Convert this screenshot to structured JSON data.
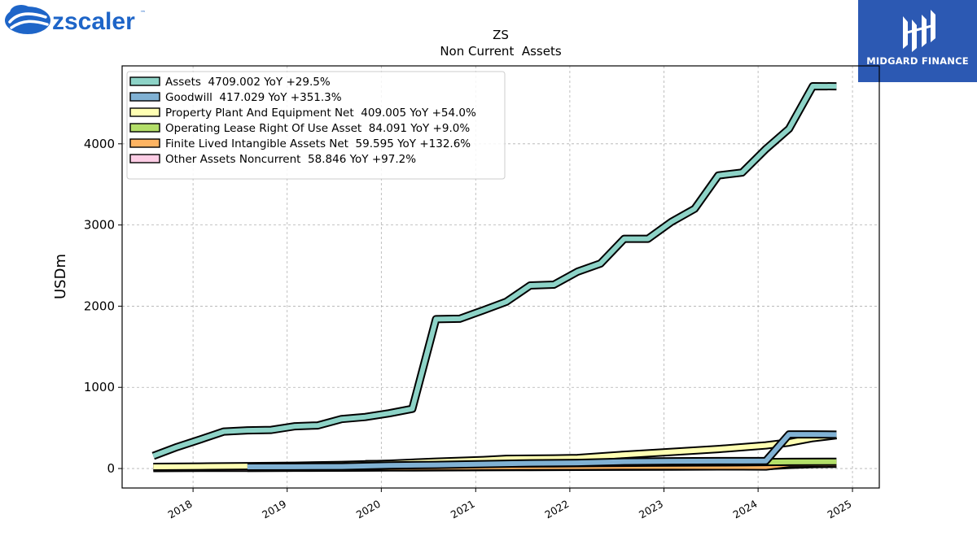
{
  "logos": {
    "left": {
      "wordmark": "zscaler",
      "mark": "™",
      "icon": "zscaler-cloud-icon",
      "color": "#1e65c8"
    },
    "right": {
      "wordmark": "MIDGARD FINANCE",
      "icon": "midgard-m-icon",
      "background": "#2c59b3"
    }
  },
  "chart_data": {
    "type": "line",
    "title": "ZS",
    "subtitle": "Non Current  Assets",
    "ylabel": "USDm",
    "xlabel": "",
    "xlim": [
      "2017-04-01",
      "2025-04-15"
    ],
    "ylim": [
      -240,
      4960
    ],
    "yticks": [
      0,
      1000,
      2000,
      3000,
      4000
    ],
    "xticks": [
      "2018",
      "2019",
      "2020",
      "2021",
      "2022",
      "2023",
      "2024",
      "2025"
    ],
    "grid": true,
    "legend_position": "top-left",
    "series": [
      {
        "name": "Assets",
        "legend": "Assets  4709.002 YoY +29.5%",
        "color": "#8dd3c7",
        "points": [
          [
            "2017-07-31",
            155
          ],
          [
            "2017-10-31",
            265
          ],
          [
            "2018-01-31",
            360
          ],
          [
            "2018-04-30",
            455
          ],
          [
            "2018-07-31",
            470
          ],
          [
            "2018-10-31",
            475
          ],
          [
            "2019-01-31",
            520
          ],
          [
            "2019-04-30",
            530
          ],
          [
            "2019-07-31",
            610
          ],
          [
            "2019-10-31",
            635
          ],
          [
            "2020-01-31",
            680
          ],
          [
            "2020-04-30",
            735
          ],
          [
            "2020-07-31",
            1840
          ],
          [
            "2020-10-31",
            1845
          ],
          [
            "2021-01-31",
            1950
          ],
          [
            "2021-04-30",
            2055
          ],
          [
            "2021-07-31",
            2255
          ],
          [
            "2021-10-31",
            2265
          ],
          [
            "2022-01-31",
            2425
          ],
          [
            "2022-04-30",
            2525
          ],
          [
            "2022-07-31",
            2830
          ],
          [
            "2022-10-31",
            2830
          ],
          [
            "2023-01-31",
            3040
          ],
          [
            "2023-04-30",
            3200
          ],
          [
            "2023-07-31",
            3610
          ],
          [
            "2023-10-31",
            3645
          ],
          [
            "2024-01-31",
            3935
          ],
          [
            "2024-04-30",
            4185
          ],
          [
            "2024-07-31",
            4710
          ],
          [
            "2024-10-31",
            4709.002
          ]
        ]
      },
      {
        "name": "Goodwill",
        "legend": "Goodwill  417.029 YoY +351.3%",
        "color": "#80b1d3",
        "points": [
          [
            "2018-07-31",
            20
          ],
          [
            "2019-01-31",
            22
          ],
          [
            "2019-07-31",
            25
          ],
          [
            "2020-01-31",
            38
          ],
          [
            "2020-07-31",
            45
          ],
          [
            "2021-01-31",
            55
          ],
          [
            "2021-07-31",
            65
          ],
          [
            "2022-01-31",
            70
          ],
          [
            "2022-07-31",
            85
          ],
          [
            "2023-01-31",
            90
          ],
          [
            "2023-07-31",
            92
          ],
          [
            "2023-10-31",
            92
          ],
          [
            "2024-01-31",
            93
          ],
          [
            "2024-04-30",
            420
          ],
          [
            "2024-07-31",
            420
          ],
          [
            "2024-10-31",
            417.029
          ]
        ]
      },
      {
        "name": "Property Plant And Equipment Net",
        "legend": "Property Plant And Equipment Net  409.005 YoY +54.0%",
        "color": "#ffffb3",
        "points": [
          [
            "2017-07-31",
            20
          ],
          [
            "2018-01-31",
            25
          ],
          [
            "2018-07-31",
            30
          ],
          [
            "2019-01-31",
            35
          ],
          [
            "2019-07-31",
            45
          ],
          [
            "2020-01-31",
            60
          ],
          [
            "2020-07-31",
            85
          ],
          [
            "2021-01-31",
            105
          ],
          [
            "2021-04-30",
            120
          ],
          [
            "2021-10-31",
            125
          ],
          [
            "2022-01-31",
            130
          ],
          [
            "2022-07-31",
            170
          ],
          [
            "2023-01-31",
            205
          ],
          [
            "2023-07-31",
            240
          ],
          [
            "2024-01-31",
            285
          ],
          [
            "2024-04-30",
            320
          ],
          [
            "2024-07-31",
            375
          ],
          [
            "2024-10-31",
            409.005
          ]
        ]
      },
      {
        "name": "Operating Lease Right Of Use Asset",
        "legend": "Operating Lease Right Of Use Asset  84.091 YoY +9.0%",
        "color": "#b3de69",
        "points": [
          [
            "2019-10-31",
            55
          ],
          [
            "2020-04-30",
            58
          ],
          [
            "2020-10-31",
            60
          ],
          [
            "2021-04-30",
            62
          ],
          [
            "2021-10-31",
            64
          ],
          [
            "2022-04-30",
            68
          ],
          [
            "2022-10-31",
            72
          ],
          [
            "2023-04-30",
            75
          ],
          [
            "2023-10-31",
            77
          ],
          [
            "2024-04-30",
            82
          ],
          [
            "2024-10-31",
            84.091
          ]
        ]
      },
      {
        "name": "Finite Lived Intangible Assets Net",
        "legend": "Finite Lived Intangible Assets Net  59.595 YoY +132.6%",
        "color": "#fdb462",
        "points": [
          [
            "2018-07-31",
            8
          ],
          [
            "2019-01-31",
            10
          ],
          [
            "2019-07-31",
            12
          ],
          [
            "2020-01-31",
            15
          ],
          [
            "2020-07-31",
            18
          ],
          [
            "2021-01-31",
            20
          ],
          [
            "2021-07-31",
            24
          ],
          [
            "2022-01-31",
            25
          ],
          [
            "2022-07-31",
            27
          ],
          [
            "2023-01-31",
            27
          ],
          [
            "2023-07-31",
            26
          ],
          [
            "2023-10-31",
            25.6
          ],
          [
            "2024-01-31",
            25
          ],
          [
            "2024-04-30",
            60
          ],
          [
            "2024-07-31",
            61
          ],
          [
            "2024-10-31",
            59.595
          ]
        ]
      },
      {
        "name": "Other Assets Noncurrent",
        "legend": "Other Assets Noncurrent  58.846 YoY +97.2%",
        "color": "#fccde5",
        "points": [
          [
            "2017-07-31",
            5
          ],
          [
            "2018-01-31",
            7
          ],
          [
            "2018-07-31",
            8
          ],
          [
            "2019-01-31",
            9
          ],
          [
            "2019-07-31",
            10
          ],
          [
            "2020-01-31",
            12
          ],
          [
            "2020-07-31",
            14
          ],
          [
            "2021-01-31",
            16
          ],
          [
            "2021-07-31",
            18
          ],
          [
            "2022-01-31",
            20
          ],
          [
            "2022-07-31",
            22
          ],
          [
            "2023-01-31",
            24
          ],
          [
            "2023-07-31",
            26
          ],
          [
            "2023-10-31",
            29.8
          ],
          [
            "2024-01-31",
            30
          ],
          [
            "2024-04-30",
            45
          ],
          [
            "2024-07-31",
            55
          ],
          [
            "2024-10-31",
            58.846
          ]
        ]
      }
    ]
  }
}
